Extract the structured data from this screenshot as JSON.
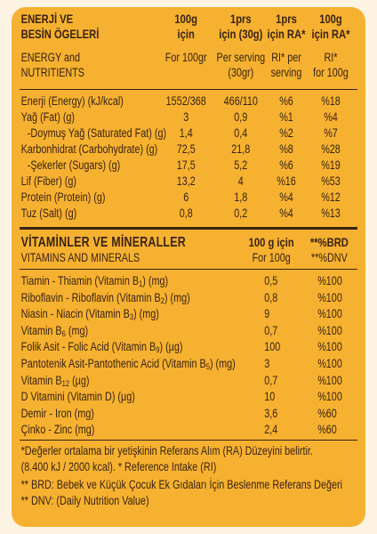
{
  "colors": {
    "background": "#fdf3e2",
    "panel": "#f6b130",
    "text": "#3a2314"
  },
  "nutrition": {
    "header": {
      "label_tr": [
        "ENERJİ VE",
        "BESİN ÖGELERİ"
      ],
      "label_en": [
        "ENERGY and",
        "NUTRITIENTS"
      ],
      "columns": [
        {
          "tr": [
            "100g",
            "için"
          ],
          "en": [
            "For 100gr"
          ]
        },
        {
          "tr": [
            "1prs",
            "için (30g)"
          ],
          "en": [
            "Per serving",
            "(30gr)"
          ]
        },
        {
          "tr": [
            "1prs",
            "için RA*"
          ],
          "en": [
            "RI* per",
            "serving"
          ]
        },
        {
          "tr": [
            "100g",
            "için RA*"
          ],
          "en": [
            "RI*",
            "for 100g"
          ]
        }
      ]
    },
    "rows": [
      {
        "label": "Enerji (Energy) (kJ/kcal)",
        "per_100g": "1552/368",
        "per_serving": "466/110",
        "ri_per_serving": "%6",
        "ri_per_100g": "%18"
      },
      {
        "label": "Yağ (Fat) (g)",
        "per_100g": "3",
        "per_serving": "0,9",
        "ri_per_serving": "%1",
        "ri_per_100g": "%4"
      },
      {
        "label": "-Doymuş Yağ (Saturated Fat) (g)",
        "per_100g": "1,4",
        "per_serving": "0,4",
        "ri_per_serving": "%2",
        "ri_per_100g": "%7"
      },
      {
        "label": "Karbonhidrat (Carbohydrate) (g)",
        "per_100g": "72,5",
        "per_serving": "21,8",
        "ri_per_serving": "%8",
        "ri_per_100g": "%28"
      },
      {
        "label": "-Şekerler (Sugars) (g)",
        "per_100g": "17,5",
        "per_serving": "5,2",
        "ri_per_serving": "%6",
        "ri_per_100g": "%19"
      },
      {
        "label": "Lif (Fiber) (g)",
        "per_100g": "13,2",
        "per_serving": "4",
        "ri_per_serving": "%16",
        "ri_per_100g": "%53"
      },
      {
        "label": "Protein (Protein) (g)",
        "per_100g": "6",
        "per_serving": "1,8",
        "ri_per_serving": "%4",
        "ri_per_100g": "%12"
      },
      {
        "label": "Tuz (Salt) (g)",
        "per_100g": "0,8",
        "per_serving": "0,2",
        "ri_per_serving": "%4",
        "ri_per_100g": "%13"
      }
    ]
  },
  "vitamins": {
    "title": "VİTAMİNLER VE MİNERALLER",
    "subtitle": "VITAMINS AND MINERALS",
    "amount_header": [
      "100 g için",
      "For 100g"
    ],
    "reference_header": [
      "**%BRD",
      "**%DNV"
    ],
    "rows": [
      {
        "label": "Tiamin - Thiamin (Vitamin B",
        "sub": "1",
        "suffix": ") (mg)",
        "amount": "0,5",
        "reference": "%100"
      },
      {
        "label": "Riboflavin - Riboflavin (Vitamin B",
        "sub": "2",
        "suffix": ") (mg)",
        "amount": "0,8",
        "reference": "%100"
      },
      {
        "label": "Niasin - Niacin (Vitamin B",
        "sub": "3",
        "suffix": ") (mg)",
        "amount": "9",
        "reference": "%100"
      },
      {
        "label": "Vitamin B",
        "sub": "6",
        "suffix": " (mg)",
        "amount": "0,7",
        "reference": "%100"
      },
      {
        "label": "Folik Asit - Folic Acid (Vitamin B",
        "sub": "9",
        "suffix": ") (µg)",
        "amount": "100",
        "reference": "%100"
      },
      {
        "label": "Pantotenik Asit-Pantothenic Acid (Vitamin B",
        "sub": "5",
        "suffix": ") (mg)",
        "amount": "3",
        "reference": "%100"
      },
      {
        "label": "Vitamin B",
        "sub": "12",
        "suffix": " (µg)",
        "amount": "0,7",
        "reference": "%100"
      },
      {
        "label": "D Vitamini (Vitamin D) (µg)",
        "amount": "10",
        "reference": "%100"
      },
      {
        "label": "Demir - Iron (mg)",
        "amount": "3,6",
        "reference": "%60"
      },
      {
        "label": "Çinko - Zinc (mg)",
        "amount": "2,4",
        "reference": "%60"
      }
    ]
  },
  "footnotes": [
    "*Değerler ortalama bir yetişkinin Referans Alım (RA) Düzeyini belirtir.",
    "(8.400 kJ / 2000 kcal). * Reference Intake (RI)",
    "** BRD: Bebek ve Küçük Çocuk Ek Gıdaları İçin Beslenme Referans Değeri",
    "** DNV: (Daily Nutrition Value)"
  ]
}
